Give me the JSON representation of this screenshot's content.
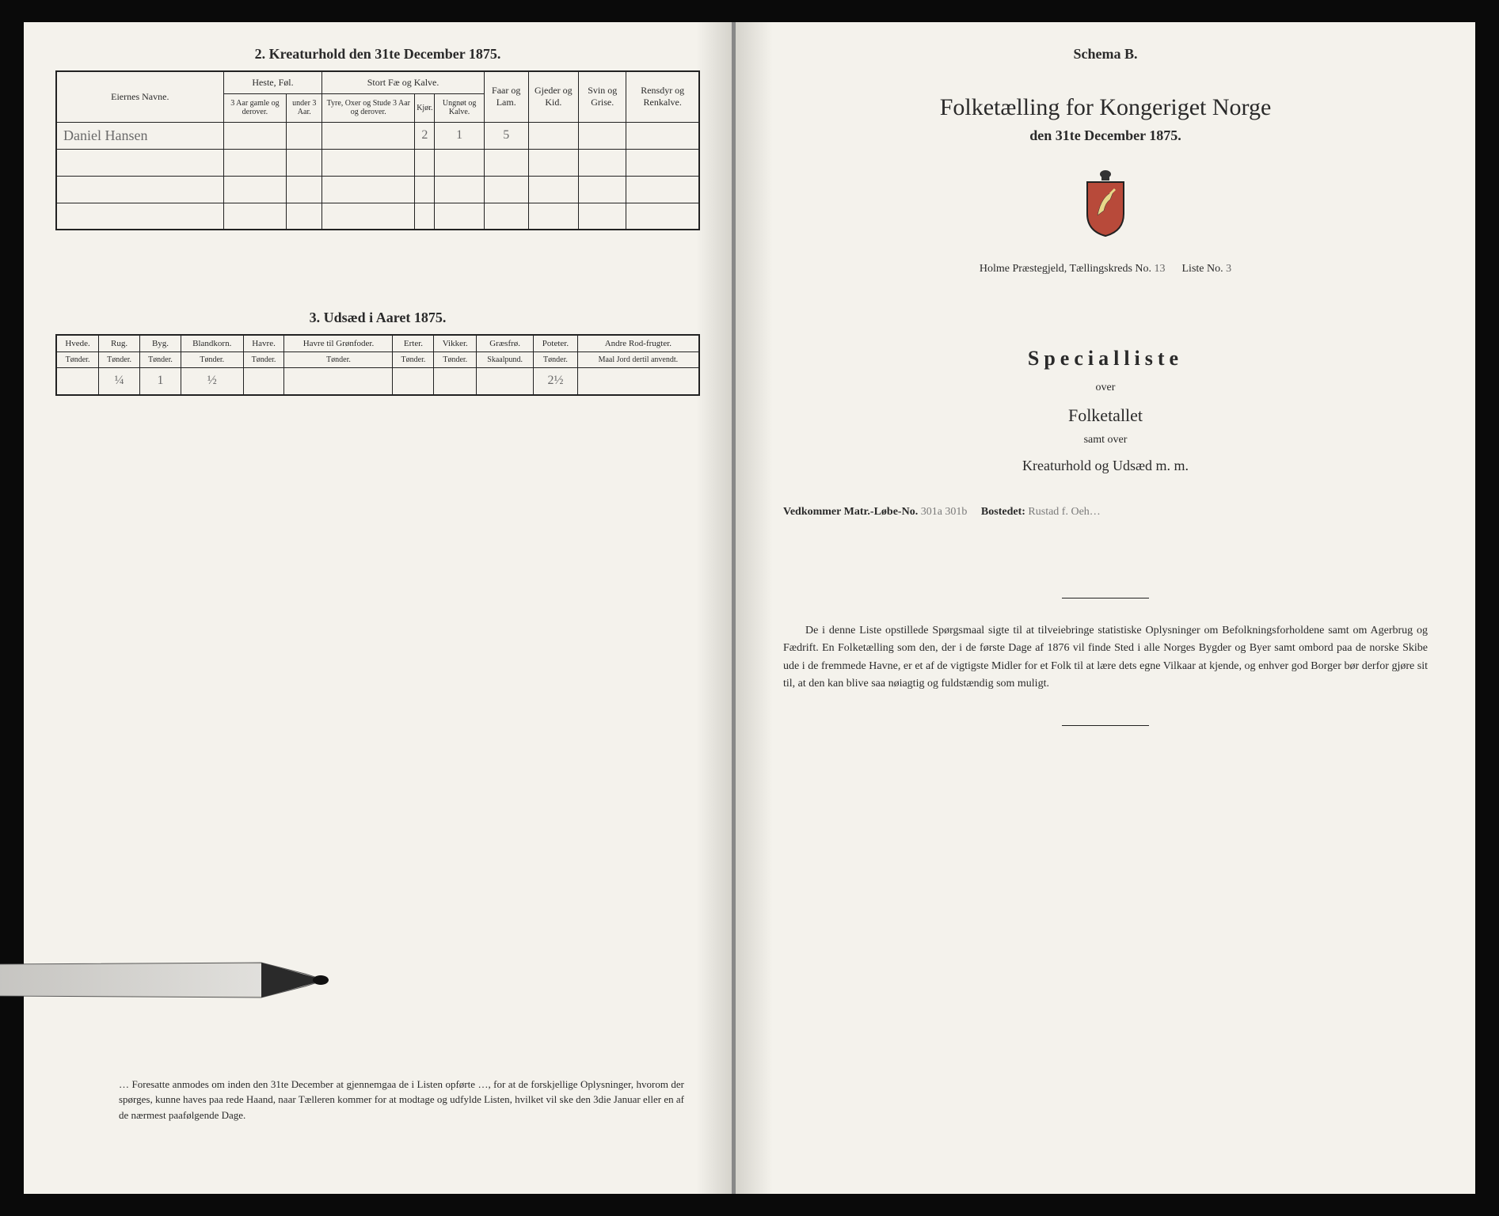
{
  "left": {
    "section2_title": "2.  Kreaturhold den 31te December 1875.",
    "table1": {
      "col_owner": "Eiernes Navne.",
      "grp_heste": "Heste, Føl.",
      "grp_stort": "Stort Fæ og Kalve.",
      "col_faar": "Faar og Lam.",
      "col_gjeder": "Gjeder og Kid.",
      "col_svin": "Svin og Grise.",
      "col_rensdyr": "Rensdyr og Renkalve.",
      "heste_a": "3 Aar gamle og derover.",
      "heste_b": "under 3 Aar.",
      "stort_a": "Tyre, Oxer og Stude 3 Aar og derover.",
      "stort_b": "Kjør.",
      "stort_c": "Ungnøt og Kalve.",
      "row1_name": "Daniel Hansen",
      "row1_v1": "2",
      "row1_v2": "1",
      "row1_v3": "5"
    },
    "section3_title": "3.  Udsæd i Aaret 1875.",
    "table2": {
      "cols": [
        "Hvede.",
        "Rug.",
        "Byg.",
        "Blandkorn.",
        "Havre.",
        "Havre til Grønfoder.",
        "Erter.",
        "Vikker.",
        "Græsfrø.",
        "Poteter.",
        "Andre Rod-frugter."
      ],
      "subs": [
        "Tønder.",
        "Tønder.",
        "Tønder.",
        "Tønder.",
        "Tønder.",
        "Tønder.",
        "Tønder.",
        "Tønder.",
        "Skaalpund.",
        "Tønder.",
        "Maal Jord dertil anvendt."
      ],
      "vals": [
        "",
        "¼",
        "1",
        "½",
        "",
        "",
        "",
        "",
        "",
        "2½",
        ""
      ]
    },
    "footnote": "… Foresatte anmodes om inden den 31te December at gjennemgaa de i Listen opførte …, for at de forskjellige Oplysninger, hvorom der spørges, kunne haves paa rede Haand, naar Tælleren kommer for at modtage og udfylde Listen, hvilket vil ske den 3die Januar eller en af de nærmest paafølgende Dage."
  },
  "right": {
    "schema": "Schema B.",
    "title": "Folketælling for Kongeriget Norge",
    "subtitle": "den 31te December 1875.",
    "meta_prefix": "Holme Præstegjeld, Tællingskreds No.",
    "meta_kreds": "13",
    "meta_liste_label": "Liste No.",
    "meta_liste": "3",
    "spec_title": "Specialliste",
    "spec_over": "over",
    "spec_folketallet": "Folketallet",
    "spec_samt": "samt over",
    "spec_kreatur": "Kreaturhold og Udsæd m. m.",
    "vedkommer_label": "Vedkommer Matr.-Løbe-No.",
    "vedkommer_no": "301a 301b",
    "bostedet_label": "Bostedet:",
    "bostedet_val": "Rustad f. Oeh…",
    "body": "De i denne Liste opstillede Spørgsmaal sigte til at tilveiebringe statistiske Oplysninger om Befolkningsforholdene samt om Agerbrug og Fædrift. En Folketælling som den, der i de første Dage af 1876 vil finde Sted i alle Norges Bygder og Byer samt ombord paa de norske Skibe ude i de fremmede Havne, er et af de vigtigste Midler for et Folk til at lære dets egne Vilkaar at kjende, og enhver god Borger bør derfor gjøre sit til, at den kan blive saa nøiagtig og fuldstændig som muligt."
  }
}
